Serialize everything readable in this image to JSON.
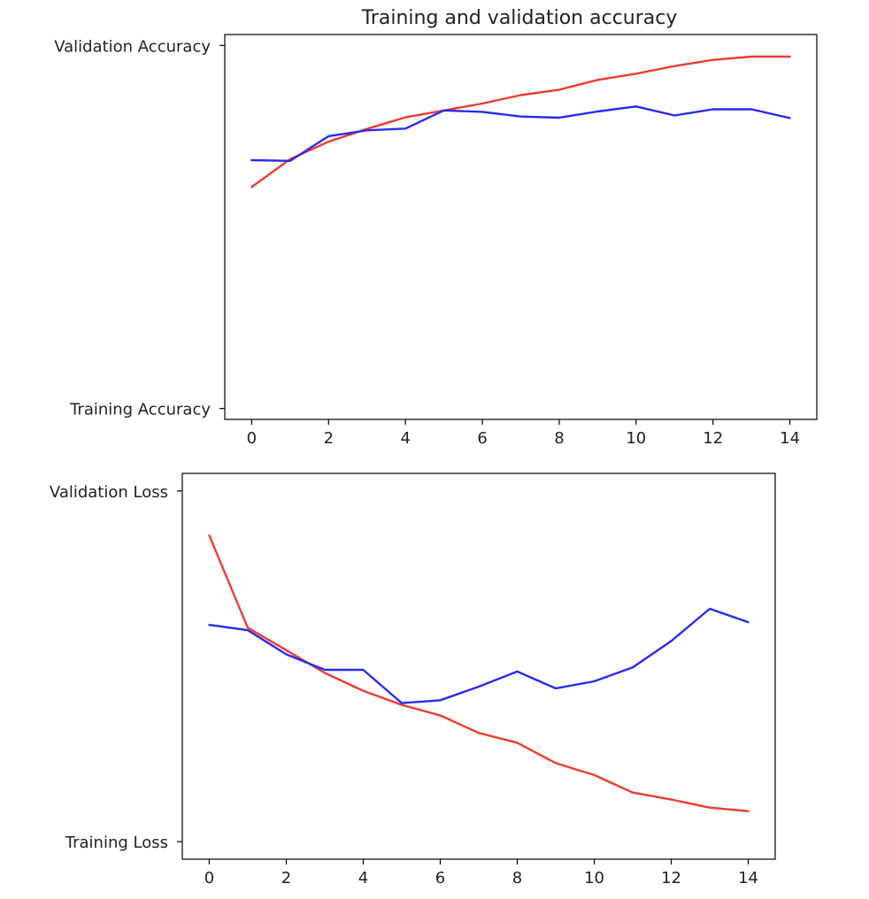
{
  "charts": [
    {
      "type": "line",
      "title": "Training and validation accuracy",
      "xlim": [
        -0.7,
        14.7
      ],
      "ylim": [
        -0.03,
        1.03
      ],
      "x_ticks": [
        0,
        2,
        4,
        6,
        8,
        10,
        12,
        14
      ],
      "y_ticks": [
        {
          "value": 0,
          "label": "Training Accuracy"
        },
        {
          "value": 1,
          "label": "Validation Accuracy"
        }
      ],
      "x": [
        0,
        1,
        2,
        3,
        4,
        5,
        6,
        7,
        8,
        9,
        10,
        11,
        12,
        13,
        14
      ],
      "series": [
        {
          "color": "#f03a30",
          "values": [
            0.61,
            0.687,
            0.735,
            0.77,
            0.802,
            0.821,
            0.84,
            0.863,
            0.878,
            0.905,
            0.922,
            0.943,
            0.96,
            0.969,
            0.969
          ]
        },
        {
          "color": "#2a2af2",
          "values": [
            0.684,
            0.682,
            0.75,
            0.766,
            0.771,
            0.821,
            0.817,
            0.804,
            0.801,
            0.818,
            0.832,
            0.807,
            0.824,
            0.824,
            0.8
          ]
        }
      ],
      "grid": false,
      "legend": "none"
    },
    {
      "type": "line",
      "title": "",
      "xlim": [
        -0.7,
        14.7
      ],
      "ylim": [
        -0.05,
        1.05
      ],
      "x_ticks": [
        0,
        2,
        4,
        6,
        8,
        10,
        12,
        14
      ],
      "y_ticks": [
        {
          "value": 0,
          "label": "Training Loss"
        },
        {
          "value": 1,
          "label": "Validation Loss"
        }
      ],
      "x": [
        0,
        1,
        2,
        3,
        4,
        5,
        6,
        7,
        8,
        9,
        10,
        11,
        12,
        13,
        14
      ],
      "series": [
        {
          "color": "#f03a30",
          "values": [
            0.873,
            0.61,
            0.546,
            0.481,
            0.43,
            0.39,
            0.36,
            0.31,
            0.282,
            0.224,
            0.19,
            0.14,
            0.12,
            0.097,
            0.087
          ]
        },
        {
          "color": "#2a2af2",
          "values": [
            0.618,
            0.603,
            0.534,
            0.49,
            0.49,
            0.395,
            0.403,
            0.442,
            0.485,
            0.437,
            0.457,
            0.497,
            0.572,
            0.664,
            0.626
          ]
        }
      ],
      "grid": false,
      "legend": "none"
    }
  ],
  "chart_data": [
    {
      "type": "line",
      "title": "Training and validation accuracy",
      "x": [
        0,
        1,
        2,
        3,
        4,
        5,
        6,
        7,
        8,
        9,
        10,
        11,
        12,
        13,
        14
      ],
      "series": [
        {
          "values": [
            0.61,
            0.687,
            0.735,
            0.77,
            0.802,
            0.821,
            0.84,
            0.863,
            0.878,
            0.905,
            0.922,
            0.943,
            0.96,
            0.969,
            0.969
          ]
        },
        {
          "values": [
            0.684,
            0.682,
            0.75,
            0.766,
            0.771,
            0.821,
            0.817,
            0.804,
            0.801,
            0.818,
            0.832,
            0.807,
            0.824,
            0.824,
            0.8
          ]
        }
      ],
      "y_tick_labels": [
        "Training Accuracy",
        "Validation Accuracy"
      ],
      "x_tick_labels": [
        "0",
        "2",
        "4",
        "6",
        "8",
        "10",
        "12",
        "14"
      ]
    },
    {
      "type": "line",
      "title": "",
      "x": [
        0,
        1,
        2,
        3,
        4,
        5,
        6,
        7,
        8,
        9,
        10,
        11,
        12,
        13,
        14
      ],
      "series": [
        {
          "values": [
            0.873,
            0.61,
            0.546,
            0.481,
            0.43,
            0.39,
            0.36,
            0.31,
            0.282,
            0.224,
            0.19,
            0.14,
            0.12,
            0.097,
            0.087
          ]
        },
        {
          "values": [
            0.618,
            0.603,
            0.534,
            0.49,
            0.49,
            0.395,
            0.403,
            0.442,
            0.485,
            0.437,
            0.457,
            0.497,
            0.572,
            0.664,
            0.626
          ]
        }
      ],
      "y_tick_labels": [
        "Training Loss",
        "Validation Loss"
      ],
      "x_tick_labels": [
        "0",
        "2",
        "4",
        "6",
        "8",
        "10",
        "12",
        "14"
      ]
    }
  ]
}
